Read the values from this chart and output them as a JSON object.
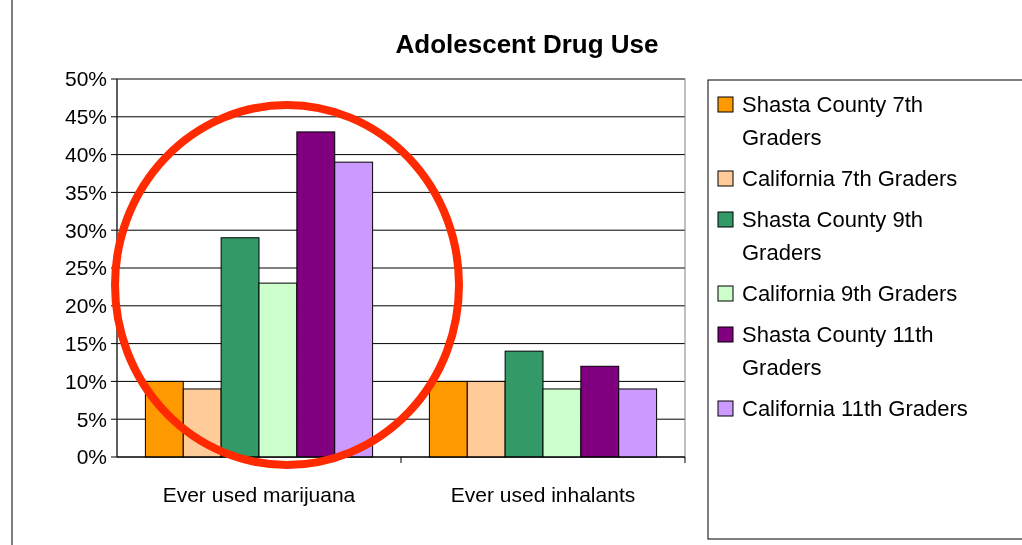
{
  "chart_data": {
    "type": "bar",
    "title": "Adolescent Drug Use",
    "categories": [
      "Ever used marijuana",
      "Ever used inhalants"
    ],
    "series": [
      {
        "name": "Shasta County 7th Graders",
        "color": "#ff9900",
        "values": [
          10,
          10
        ]
      },
      {
        "name": "California 7th Graders",
        "color": "#ffcc99",
        "values": [
          9,
          10
        ]
      },
      {
        "name": "Shasta County 9th Graders",
        "color": "#339966",
        "values": [
          29,
          14
        ]
      },
      {
        "name": "California 9th Graders",
        "color": "#ccffcc",
        "values": [
          23,
          9
        ]
      },
      {
        "name": "Shasta County 11th Graders",
        "color": "#800080",
        "values": [
          43,
          12
        ]
      },
      {
        "name": "California 11th Graders",
        "color": "#cc99ff",
        "values": [
          39,
          9
        ]
      }
    ],
    "ylim": [
      0,
      50
    ],
    "yticks": [
      {
        "value": 0,
        "label": "0%"
      },
      {
        "value": 5,
        "label": "5%"
      },
      {
        "value": 10,
        "label": "10%"
      },
      {
        "value": 15,
        "label": "15%"
      },
      {
        "value": 20,
        "label": "20%"
      },
      {
        "value": 25,
        "label": "25%"
      },
      {
        "value": 30,
        "label": "30%"
      },
      {
        "value": 35,
        "label": "35%"
      },
      {
        "value": 40,
        "label": "40%"
      },
      {
        "value": 45,
        "label": "45%"
      },
      {
        "value": 50,
        "label": "50%"
      }
    ],
    "grid": "y",
    "legend": "right"
  }
}
